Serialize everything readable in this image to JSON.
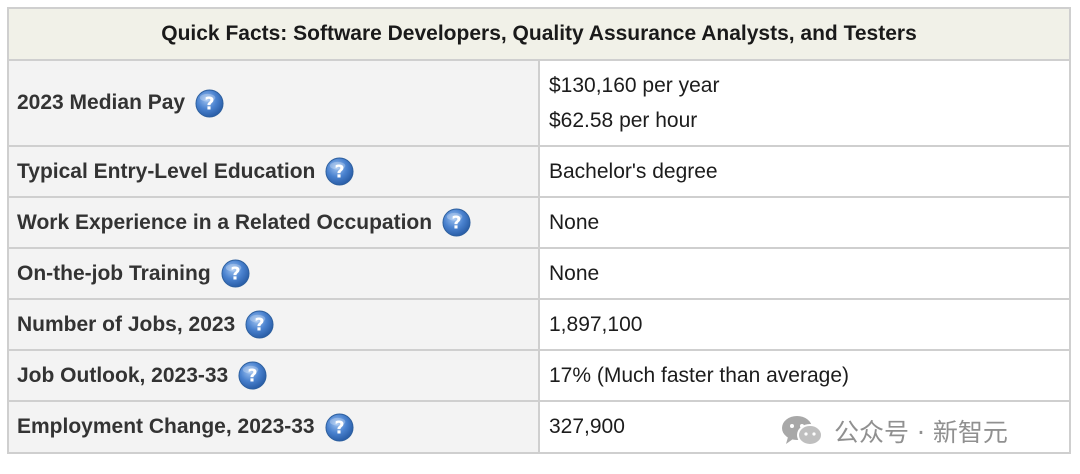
{
  "table": {
    "title": "Quick Facts: Software Developers, Quality Assurance Analysts, and Testers",
    "help_icon": "question-mark-circle-icon",
    "rows": [
      {
        "label": "2023 Median Pay",
        "values": [
          "$130,160 per year",
          "$62.58 per hour"
        ]
      },
      {
        "label": "Typical Entry-Level Education",
        "values": [
          "Bachelor's degree"
        ]
      },
      {
        "label": "Work Experience in a Related Occupation",
        "values": [
          "None"
        ]
      },
      {
        "label": "On-the-job Training",
        "values": [
          "None"
        ]
      },
      {
        "label": "Number of Jobs, 2023",
        "values": [
          "1,897,100"
        ]
      },
      {
        "label": "Job Outlook, 2023-33",
        "values": [
          "17% (Much faster than average)"
        ]
      },
      {
        "label": "Employment Change, 2023-33",
        "values": [
          "327,900"
        ]
      }
    ]
  },
  "watermark": {
    "icon": "wechat-icon",
    "text": "公众号 · 新智元"
  },
  "colors": {
    "title_bg": "#f1f1e8",
    "label_bg": "#f3f3f3",
    "border": "#cfcfcf",
    "icon_blue": "#3f78c9"
  }
}
